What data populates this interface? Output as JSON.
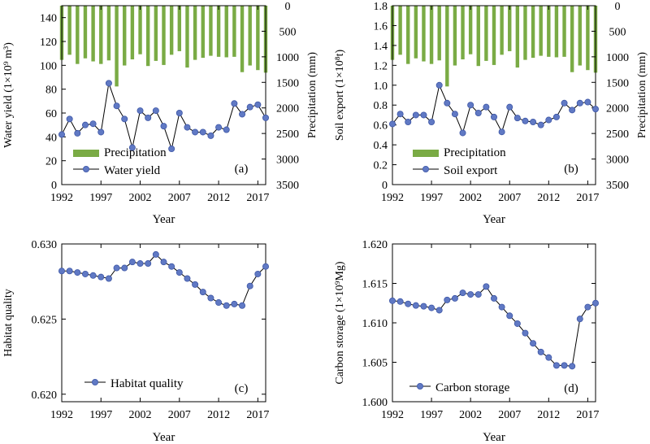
{
  "colors": {
    "precip": "#7aab45",
    "series_line": "#000000",
    "marker_fill": "#6079c4",
    "marker_stroke": "#3e57a6"
  },
  "chart_data": [
    {
      "type": "bar+line",
      "panel": "(a)",
      "xlabel": "Year",
      "ylabel": "Water yield (1×10⁹ m³)",
      "y2label": "Precipitation (mm)",
      "x_ticks": [
        1992,
        1997,
        2002,
        2007,
        2012,
        2017
      ],
      "xlim": [
        1992,
        2018
      ],
      "ylim": [
        0,
        150
      ],
      "y_ticks": [
        "0",
        "20",
        "40",
        "60",
        "80",
        "100",
        "120",
        "140"
      ],
      "y_tick_values": [
        0,
        20,
        40,
        60,
        80,
        100,
        120,
        140
      ],
      "y2lim_inverted": [
        0,
        3500
      ],
      "y2_ticks": [
        "0",
        "500",
        "1000",
        "1500",
        "2000",
        "2500",
        "3000",
        "3500"
      ],
      "y2_tick_values": [
        0,
        500,
        1000,
        1500,
        2000,
        2500,
        3000,
        3500
      ],
      "legend": [
        "Precipitation",
        "Water yield"
      ],
      "legend_position": "bottom-left",
      "x": [
        1992,
        1993,
        1994,
        1995,
        1996,
        1997,
        1998,
        1999,
        2000,
        2001,
        2002,
        2003,
        2004,
        2005,
        2006,
        2007,
        2008,
        2009,
        2010,
        2011,
        2012,
        2013,
        2014,
        2015,
        2016,
        2017,
        2018
      ],
      "precipitation": [
        1060,
        960,
        1140,
        1030,
        1090,
        1140,
        1070,
        1580,
        1170,
        1050,
        950,
        1180,
        1080,
        1160,
        960,
        890,
        1210,
        1060,
        1020,
        980,
        1000,
        1010,
        1000,
        1300,
        1170,
        1260,
        1310
      ],
      "series": [
        {
          "name": "Water yield",
          "values": [
            42,
            55,
            43,
            50,
            51,
            44,
            85,
            66,
            55,
            31,
            62,
            56,
            62,
            49,
            30,
            60,
            48,
            44,
            44,
            41,
            48,
            46,
            68,
            59,
            65,
            67,
            56
          ]
        }
      ]
    },
    {
      "type": "bar+line",
      "panel": "(b)",
      "xlabel": "Year",
      "ylabel": "Soil export (1×10⁸t)",
      "y2label": "Precipitation (mm)",
      "x_ticks": [
        1992,
        1997,
        2002,
        2007,
        2012,
        2017
      ],
      "xlim": [
        1992,
        2018
      ],
      "ylim": [
        0,
        1.8
      ],
      "y_ticks": [
        "0",
        "0.2",
        "0.4",
        "0.6",
        "0.8",
        "1.0",
        "1.2",
        "1.4",
        "1.6",
        "1.8"
      ],
      "y_tick_values": [
        0,
        0.2,
        0.4,
        0.6,
        0.8,
        1.0,
        1.2,
        1.4,
        1.6,
        1.8
      ],
      "y2lim_inverted": [
        0,
        3500
      ],
      "y2_ticks": [
        "0",
        "500",
        "1000",
        "1500",
        "2000",
        "2500",
        "3000",
        "3500"
      ],
      "y2_tick_values": [
        0,
        500,
        1000,
        1500,
        2000,
        2500,
        3000,
        3500
      ],
      "legend": [
        "Precipitation",
        "Soil export"
      ],
      "legend_position": "bottom-left",
      "x": [
        1992,
        1993,
        1994,
        1995,
        1996,
        1997,
        1998,
        1999,
        2000,
        2001,
        2002,
        2003,
        2004,
        2005,
        2006,
        2007,
        2008,
        2009,
        2010,
        2011,
        2012,
        2013,
        2014,
        2015,
        2016,
        2017,
        2018
      ],
      "precipitation": [
        1060,
        960,
        1140,
        1030,
        1090,
        1140,
        1070,
        1580,
        1170,
        1050,
        950,
        1180,
        1080,
        1160,
        960,
        890,
        1210,
        1060,
        1020,
        980,
        1000,
        1010,
        1000,
        1300,
        1170,
        1260,
        1310
      ],
      "series": [
        {
          "name": "Soil export",
          "values": [
            0.61,
            0.71,
            0.63,
            0.7,
            0.7,
            0.63,
            1.0,
            0.82,
            0.71,
            0.52,
            0.8,
            0.72,
            0.78,
            0.68,
            0.53,
            0.78,
            0.67,
            0.64,
            0.63,
            0.6,
            0.65,
            0.68,
            0.82,
            0.75,
            0.82,
            0.83,
            0.76
          ]
        }
      ]
    },
    {
      "type": "line",
      "panel": "(c)",
      "xlabel": "Year",
      "ylabel": "Habitat quality",
      "x_ticks": [
        1992,
        1997,
        2002,
        2007,
        2012,
        2017
      ],
      "xlim": [
        1992,
        2018
      ],
      "ylim": [
        0.6195,
        0.63
      ],
      "y_ticks": [
        "0.620",
        "0.625",
        "0.630"
      ],
      "y_tick_values": [
        0.62,
        0.625,
        0.63
      ],
      "legend": [
        "Habitat quality"
      ],
      "legend_position": "bottom-left",
      "x": [
        1992,
        1993,
        1994,
        1995,
        1996,
        1997,
        1998,
        1999,
        2000,
        2001,
        2002,
        2003,
        2004,
        2005,
        2006,
        2007,
        2008,
        2009,
        2010,
        2011,
        2012,
        2013,
        2014,
        2015,
        2016,
        2017,
        2018
      ],
      "series": [
        {
          "name": "Habitat quality",
          "values": [
            0.6282,
            0.6282,
            0.6281,
            0.628,
            0.6279,
            0.6278,
            0.6277,
            0.6284,
            0.6284,
            0.6288,
            0.6287,
            0.6287,
            0.6293,
            0.6288,
            0.6285,
            0.6281,
            0.6277,
            0.6273,
            0.6268,
            0.6264,
            0.6261,
            0.6259,
            0.626,
            0.6259,
            0.6272,
            0.628,
            0.6285
          ]
        }
      ]
    },
    {
      "type": "line",
      "panel": "(d)",
      "xlabel": "Year",
      "ylabel": "Carbon storage (1×10⁹Mg)",
      "x_ticks": [
        1992,
        1997,
        2002,
        2007,
        2012,
        2017
      ],
      "xlim": [
        1992,
        2018
      ],
      "ylim": [
        1.6,
        1.62
      ],
      "y_ticks": [
        "1.600",
        "1.605",
        "1.610",
        "1.615",
        "1.620"
      ],
      "y_tick_values": [
        1.6,
        1.605,
        1.61,
        1.615,
        1.62
      ],
      "legend": [
        "Carbon storage"
      ],
      "legend_position": "bottom-left",
      "x": [
        1992,
        1993,
        1994,
        1995,
        1996,
        1997,
        1998,
        1999,
        2000,
        2001,
        2002,
        2003,
        2004,
        2005,
        2006,
        2007,
        2008,
        2009,
        2010,
        2011,
        2012,
        2013,
        2014,
        2015,
        2016,
        2017,
        2018
      ],
      "series": [
        {
          "name": "Carbon storage",
          "values": [
            1.6128,
            1.6127,
            1.6124,
            1.6122,
            1.6121,
            1.6119,
            1.6116,
            1.6129,
            1.6131,
            1.6138,
            1.6136,
            1.6136,
            1.6146,
            1.6131,
            1.612,
            1.6109,
            1.6099,
            1.6087,
            1.6074,
            1.6063,
            1.6056,
            1.6046,
            1.6046,
            1.6045,
            1.6105,
            1.612,
            1.6125
          ]
        }
      ]
    }
  ]
}
